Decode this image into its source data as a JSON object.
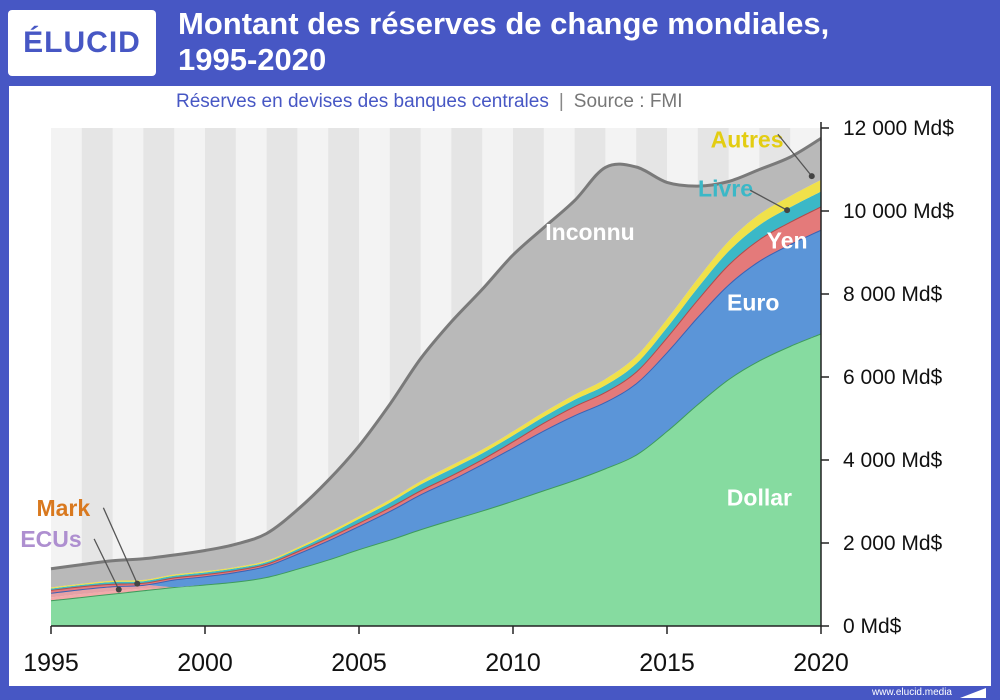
{
  "header": {
    "logo": "ÉLUCID",
    "title_line1": "Montant des réserves de change mondiales,",
    "title_line2": "1995-2020"
  },
  "subtitle": {
    "main": "Réserves en devises des banques centrales",
    "separator": "|",
    "source": "Source : FMI"
  },
  "footer": {
    "url": "www.elucid.media"
  },
  "colors": {
    "brand": "#4757C4",
    "Dollar": "#86DBA0",
    "ECUs": "#F3A9A9",
    "Euro": "#5B95D8",
    "Mark": "#E5A1A6",
    "Yen": "#E47A7A",
    "Livre": "#3BB8C7",
    "Autres": "#F0E14A",
    "Inconnu": "#B9B9B9"
  },
  "chart_data": {
    "type": "area",
    "stacked": true,
    "title": "Montant des réserves de change mondiales, 1995-2020",
    "subtitle": "Réserves en devises des banques centrales | Source : FMI",
    "x": [
      1995,
      1996,
      1997,
      1998,
      1999,
      2000,
      2001,
      2002,
      2003,
      2004,
      2005,
      2006,
      2007,
      2008,
      2009,
      2010,
      2011,
      2012,
      2013,
      2014,
      2015,
      2016,
      2017,
      2018,
      2019,
      2020
    ],
    "x_ticks": [
      1995,
      2000,
      2005,
      2010,
      2015,
      2020
    ],
    "x_tick_labels": [
      "1995",
      "2000",
      "2005",
      "2010",
      "2015",
      "2020"
    ],
    "ylim": [
      0,
      12000
    ],
    "y_ticks": [
      0,
      2000,
      4000,
      6000,
      8000,
      10000,
      12000
    ],
    "y_tick_labels": [
      "0 Md$",
      "2 000 Md$",
      "4 000 Md$",
      "6 000 Md$",
      "8 000 Md$",
      "10 000 Md$",
      "12 000 Md$"
    ],
    "y_axis_position": "right",
    "grid": false,
    "alternating_year_bands": true,
    "series": [
      {
        "name": "Dollar",
        "values": [
          620,
          700,
          780,
          860,
          940,
          1000,
          1070,
          1180,
          1380,
          1600,
          1850,
          2080,
          2330,
          2560,
          2780,
          3020,
          3270,
          3520,
          3800,
          4130,
          4700,
          5350,
          5950,
          6400,
          6750,
          7050
        ]
      },
      {
        "name": "ECUs",
        "values": [
          70,
          70,
          60,
          40,
          0,
          0,
          0,
          0,
          0,
          0,
          0,
          0,
          0,
          0,
          0,
          0,
          0,
          0,
          0,
          0,
          0,
          0,
          0,
          0,
          0,
          0
        ]
      },
      {
        "name": "Mark",
        "values": [
          110,
          120,
          120,
          90,
          0,
          0,
          0,
          0,
          0,
          0,
          0,
          0,
          0,
          0,
          0,
          0,
          0,
          0,
          0,
          0,
          0,
          0,
          0,
          0,
          0,
          0
        ]
      },
      {
        "name": "Euro",
        "values": [
          0,
          0,
          0,
          0,
          180,
          200,
          230,
          270,
          360,
          460,
          560,
          690,
          840,
          960,
          1120,
          1280,
          1440,
          1560,
          1600,
          1720,
          1900,
          2100,
          2280,
          2400,
          2450,
          2500
        ]
      },
      {
        "name": "Yen",
        "values": [
          70,
          70,
          60,
          50,
          50,
          50,
          50,
          50,
          60,
          70,
          80,
          90,
          100,
          110,
          120,
          150,
          190,
          220,
          240,
          280,
          360,
          420,
          480,
          520,
          540,
          560
        ]
      },
      {
        "name": "Livre",
        "values": [
          30,
          30,
          40,
          40,
          40,
          40,
          40,
          40,
          50,
          70,
          90,
          110,
          140,
          150,
          140,
          140,
          140,
          150,
          160,
          190,
          230,
          280,
          320,
          340,
          350,
          360
        ]
      },
      {
        "name": "Autres",
        "values": [
          30,
          30,
          30,
          30,
          30,
          30,
          30,
          30,
          40,
          50,
          60,
          70,
          80,
          90,
          90,
          100,
          110,
          120,
          150,
          180,
          200,
          220,
          240,
          260,
          270,
          280
        ]
      },
      {
        "name": "Inconnu",
        "values": [
          450,
          460,
          480,
          510,
          470,
          500,
          550,
          660,
          910,
          1260,
          1700,
          2300,
          2950,
          3460,
          3860,
          4250,
          4450,
          4680,
          5100,
          4560,
          3300,
          2230,
          1440,
          1080,
          940,
          1000
        ]
      }
    ]
  }
}
